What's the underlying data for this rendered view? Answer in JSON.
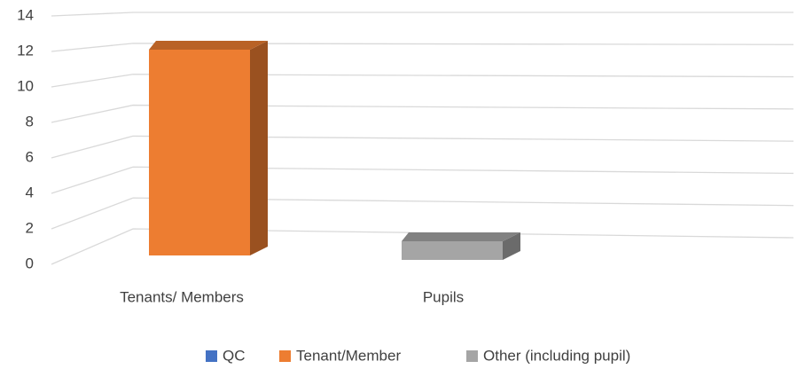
{
  "chart_data": {
    "type": "bar3d",
    "categories": [
      "Tenants/ Members",
      "Pupils"
    ],
    "series": [
      {
        "name": "QC",
        "color": "#4472c4",
        "values": [
          null,
          null
        ]
      },
      {
        "name": "Tenant/Member",
        "color": "#ed7d31",
        "values": [
          13,
          null
        ]
      },
      {
        "name": "Other (including pupil)",
        "color": "#a5a5a5",
        "values": [
          null,
          1
        ]
      }
    ],
    "ylim": [
      0,
      14
    ],
    "yticks": [
      0,
      2,
      4,
      6,
      8,
      10,
      12,
      14
    ],
    "grid": true,
    "legend": "bottom"
  }
}
